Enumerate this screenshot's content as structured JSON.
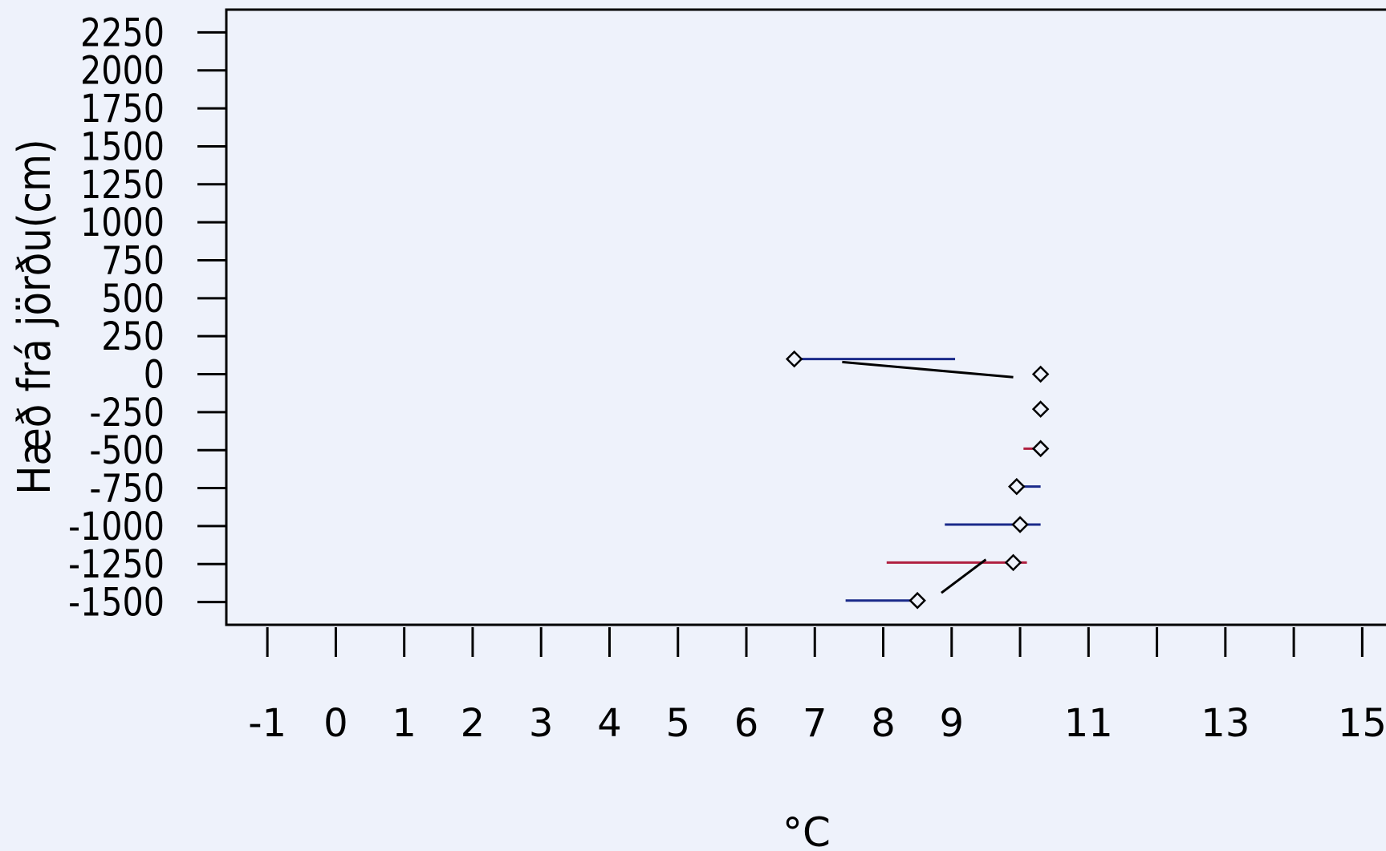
{
  "chart_data": {
    "type": "scatter",
    "title": "",
    "xlabel": "°C",
    "ylabel": "Hæð frá jörðu(cm)",
    "x_ticks": [
      "-1",
      "0",
      "1",
      "2",
      "3",
      "4",
      "5",
      "6",
      "7",
      "8",
      "9",
      "",
      "11",
      "",
      "13",
      "",
      "15"
    ],
    "x_tick_values": [
      -1,
      0,
      1,
      2,
      3,
      4,
      5,
      6,
      7,
      8,
      9,
      10,
      11,
      12,
      13,
      14,
      15
    ],
    "y_ticks": [
      "2250",
      "2000",
      "1750",
      "1500",
      "1250",
      "1000",
      "750",
      "500",
      "250",
      "0",
      "-250",
      "-500",
      "-750",
      "-1000",
      "-1250",
      "-1500"
    ],
    "y_tick_values": [
      2250,
      2000,
      1750,
      1500,
      1250,
      1000,
      750,
      500,
      250,
      0,
      -250,
      -500,
      -750,
      -1000,
      -1250,
      -1500
    ],
    "xlim": [
      -1.6,
      15.5
    ],
    "ylim": [
      -1650,
      2400
    ],
    "points": [
      {
        "x": 6.7,
        "y": 100
      },
      {
        "x": 10.3,
        "y": 0
      },
      {
        "x": 10.3,
        "y": -230
      },
      {
        "x": 10.3,
        "y": -490
      },
      {
        "x": 9.95,
        "y": -740
      },
      {
        "x": 10.0,
        "y": -990
      },
      {
        "x": 9.9,
        "y": -1240
      },
      {
        "x": 8.5,
        "y": -1490
      }
    ],
    "segments": [
      {
        "x1": 6.7,
        "y1": 100,
        "x2": 9.05,
        "y2": 100,
        "color": "#1a2a8a"
      },
      {
        "x1": 7.4,
        "y1": 80,
        "x2": 9.9,
        "y2": -20,
        "color": "#000000"
      },
      {
        "x1": 10.05,
        "y1": -490,
        "x2": 10.3,
        "y2": -490,
        "color": "#b02040"
      },
      {
        "x1": 9.95,
        "y1": -740,
        "x2": 10.3,
        "y2": -740,
        "color": "#1a2a8a"
      },
      {
        "x1": 8.9,
        "y1": -990,
        "x2": 10.3,
        "y2": -990,
        "color": "#1a2a8a"
      },
      {
        "x1": 8.05,
        "y1": -1240,
        "x2": 10.1,
        "y2": -1240,
        "color": "#b02040"
      },
      {
        "x1": 9.5,
        "y1": -1220,
        "x2": 8.85,
        "y2": -1440,
        "color": "#000000"
      },
      {
        "x1": 7.45,
        "y1": -1490,
        "x2": 8.5,
        "y2": -1490,
        "color": "#1a2a8a"
      }
    ]
  }
}
